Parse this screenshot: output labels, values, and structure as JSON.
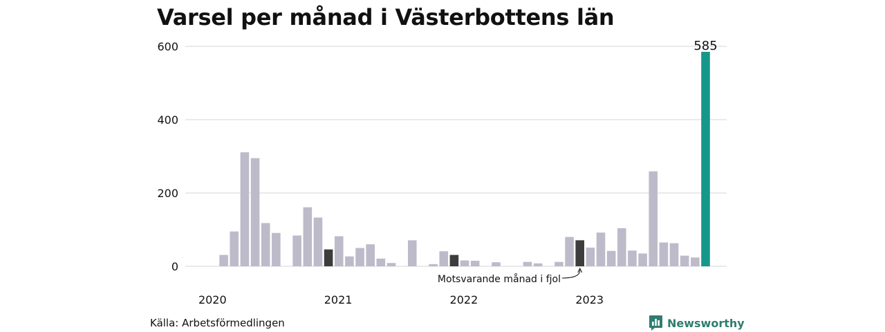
{
  "title": "Varsel per månad i Västerbottens län",
  "source": "Källa: Arbetsförmedlingen",
  "brand": "Newsworthy",
  "colors": {
    "normal": "#bdbbc9",
    "highlight": "#3d3d3d",
    "current": "#15978a",
    "grid": "#dedde3",
    "brand": "#2e7d6f"
  },
  "chart_data": {
    "type": "bar",
    "title": "Varsel per månad i Västerbottens län",
    "xlabel": "",
    "ylabel": "",
    "ylim": [
      0,
      600
    ],
    "yticks": [
      0,
      200,
      400,
      600
    ],
    "grid": true,
    "year_labels": [
      {
        "label": "2020",
        "start_index": 0
      },
      {
        "label": "2021",
        "start_index": 12
      },
      {
        "label": "2022",
        "start_index": 24
      },
      {
        "label": "2023",
        "start_index": 36
      }
    ],
    "values": [
      0,
      0,
      31,
      95,
      311,
      295,
      118,
      91,
      0,
      84,
      161,
      133,
      46,
      82,
      27,
      50,
      60,
      21,
      9,
      0,
      71,
      0,
      6,
      41,
      31,
      16,
      15,
      0,
      11,
      0,
      0,
      12,
      8,
      0,
      12,
      80,
      71,
      51,
      92,
      42,
      104,
      43,
      35,
      259,
      65,
      63,
      29,
      24,
      585
    ],
    "highlight_indices": [
      12,
      24,
      36
    ],
    "current_index": 48,
    "value_label": {
      "index": 48,
      "text": "585"
    },
    "annotation": {
      "index": 36,
      "text": "Motsvarande månad i fjol"
    }
  }
}
